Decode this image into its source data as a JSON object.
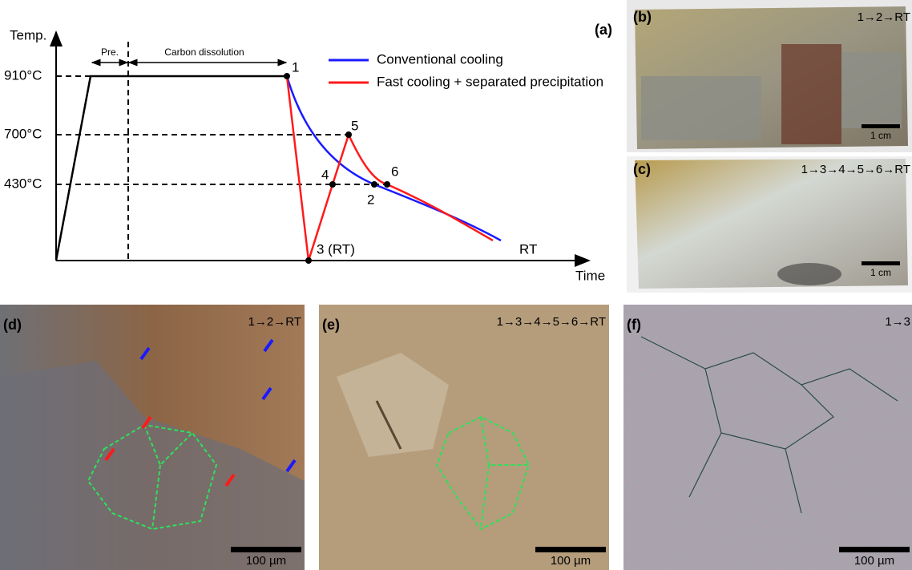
{
  "panel_a": {
    "label": "(a)",
    "y_axis_label": "Temp.",
    "x_axis_label": "Time",
    "temperatures": [
      "910°C",
      "700°C",
      "430°C"
    ],
    "stages": [
      "Pre.",
      "Carbon dissolution"
    ],
    "points": [
      "1",
      "2",
      "3 (RT)",
      "4",
      "5",
      "6"
    ],
    "end_label": "RT",
    "legend": [
      "Conventional cooling",
      "Fast cooling + separated precipitation"
    ]
  },
  "panels": [
    {
      "label": "(b)",
      "route": "1→2→RT",
      "scale": "1 cm"
    },
    {
      "label": "(c)",
      "route": "1→3→4→5→6→RT",
      "scale": "1 cm"
    },
    {
      "label": "(d)",
      "route": "1→2→RT",
      "scale": "100 µm"
    },
    {
      "label": "(e)",
      "route": "1→3→4→5→6→RT",
      "scale": "100 µm"
    },
    {
      "label": "(f)",
      "route": "1→3",
      "scale": "100 µm"
    }
  ]
}
